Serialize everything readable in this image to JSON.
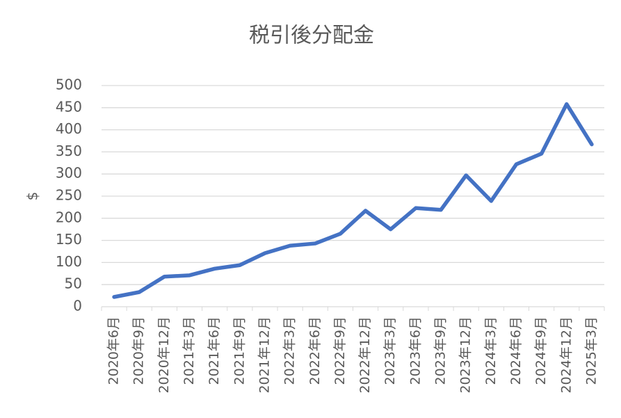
{
  "chart_data": {
    "type": "line",
    "title": "税引後分配金",
    "y_label": "$",
    "categories": [
      "2020年6月",
      "2020年9月",
      "2020年12月",
      "2021年3月",
      "2021年6月",
      "2021年9月",
      "2021年12月",
      "2022年3月",
      "2022年6月",
      "2022年9月",
      "2022年12月",
      "2023年3月",
      "2023年6月",
      "2023年9月",
      "2023年12月",
      "2024年3月",
      "2024年6月",
      "2024年9月",
      "2024年12月",
      "2025年3月"
    ],
    "series": [
      {
        "name": "税引後分配金",
        "color": "#4472c4",
        "values": [
          22,
          33,
          68,
          71,
          86,
          94,
          121,
          138,
          143,
          165,
          217,
          175,
          223,
          219,
          297,
          239,
          322,
          346,
          458,
          367
        ]
      }
    ],
    "ylim": [
      0,
      500
    ],
    "yticks": [
      0,
      50,
      100,
      150,
      200,
      250,
      300,
      350,
      400,
      450,
      500
    ],
    "grid": true
  }
}
